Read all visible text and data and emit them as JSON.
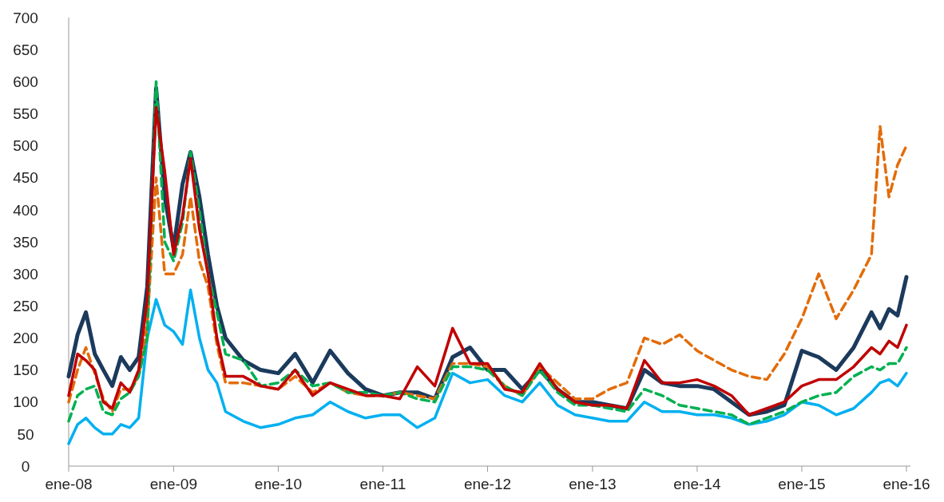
{
  "chart_data": {
    "type": "line",
    "x": [
      "2008-01",
      "2008-02",
      "2008-03",
      "2008-04",
      "2008-05",
      "2008-06",
      "2008-07",
      "2008-08",
      "2008-09",
      "2008-10",
      "2008-11",
      "2008-12",
      "2009-01",
      "2009-02",
      "2009-03",
      "2009-04",
      "2009-05",
      "2009-06",
      "2009-07",
      "2009-09",
      "2009-11",
      "2010-01",
      "2010-03",
      "2010-05",
      "2010-07",
      "2010-09",
      "2010-11",
      "2011-01",
      "2011-03",
      "2011-05",
      "2011-07",
      "2011-09",
      "2011-11",
      "2012-01",
      "2012-03",
      "2012-05",
      "2012-07",
      "2012-09",
      "2012-11",
      "2013-01",
      "2013-03",
      "2013-05",
      "2013-07",
      "2013-09",
      "2013-11",
      "2014-01",
      "2014-03",
      "2014-05",
      "2014-07",
      "2014-09",
      "2014-11",
      "2015-01",
      "2015-03",
      "2015-05",
      "2015-07",
      "2015-09",
      "2015-10",
      "2015-11",
      "2015-12",
      "2016-01"
    ],
    "series": [
      {
        "color": "#00b0f0",
        "line_style": "solid",
        "values": [
          35,
          65,
          75,
          60,
          50,
          50,
          65,
          60,
          75,
          200,
          260,
          220,
          210,
          190,
          275,
          200,
          150,
          130,
          85,
          70,
          60,
          65,
          75,
          80,
          100,
          85,
          75,
          80,
          80,
          60,
          75,
          145,
          130,
          135,
          110,
          100,
          130,
          95,
          80,
          75,
          70,
          70,
          100,
          85,
          85,
          80,
          80,
          75,
          65,
          70,
          80,
          100,
          95,
          80,
          90,
          115,
          130,
          135,
          125,
          145
        ]
      },
      {
        "color": "#1b3a5c",
        "line_style": "solid",
        "values": [
          140,
          205,
          240,
          175,
          150,
          125,
          170,
          150,
          170,
          280,
          590,
          420,
          340,
          440,
          490,
          420,
          330,
          250,
          200,
          165,
          150,
          145,
          175,
          130,
          180,
          145,
          120,
          110,
          115,
          115,
          105,
          170,
          185,
          150,
          150,
          120,
          150,
          120,
          100,
          100,
          95,
          90,
          150,
          130,
          125,
          125,
          120,
          100,
          80,
          85,
          95,
          180,
          170,
          150,
          185,
          240,
          215,
          245,
          235,
          295
        ]
      },
      {
        "color": "#e36c09",
        "line_style": "dashed",
        "values": [
          100,
          150,
          185,
          145,
          105,
          85,
          120,
          120,
          140,
          220,
          450,
          300,
          300,
          330,
          420,
          320,
          280,
          190,
          130,
          130,
          125,
          120,
          140,
          115,
          130,
          115,
          110,
          110,
          115,
          110,
          105,
          160,
          160,
          155,
          125,
          110,
          155,
          130,
          105,
          105,
          120,
          130,
          200,
          190,
          205,
          180,
          165,
          150,
          140,
          135,
          175,
          230,
          300,
          230,
          275,
          330,
          530,
          420,
          470,
          500
        ]
      },
      {
        "color": "#00b050",
        "line_style": "dashed",
        "values": [
          70,
          110,
          120,
          125,
          85,
          80,
          105,
          115,
          140,
          200,
          600,
          350,
          320,
          380,
          490,
          400,
          300,
          240,
          175,
          165,
          125,
          130,
          150,
          125,
          130,
          115,
          115,
          110,
          115,
          105,
          100,
          155,
          155,
          150,
          125,
          110,
          150,
          115,
          95,
          95,
          90,
          85,
          120,
          110,
          95,
          90,
          85,
          80,
          65,
          75,
          85,
          100,
          110,
          115,
          140,
          155,
          150,
          160,
          160,
          185
        ]
      },
      {
        "color": "#c00000",
        "line_style": "solid",
        "values": [
          110,
          175,
          165,
          150,
          100,
          90,
          130,
          115,
          150,
          260,
          560,
          460,
          330,
          390,
          480,
          370,
          300,
          200,
          140,
          140,
          125,
          120,
          150,
          110,
          130,
          120,
          110,
          110,
          105,
          155,
          125,
          215,
          160,
          160,
          120,
          115,
          160,
          120,
          100,
          95,
          95,
          90,
          165,
          130,
          130,
          135,
          125,
          110,
          80,
          90,
          100,
          125,
          135,
          135,
          155,
          185,
          175,
          195,
          185,
          220
        ]
      }
    ],
    "xlim": [
      "2008-01",
      "2016-01-15"
    ],
    "xticks": [
      {
        "value": "2008-01",
        "label": "ene-08"
      },
      {
        "value": "2009-01",
        "label": "ene-09"
      },
      {
        "value": "2010-01",
        "label": "ene-10"
      },
      {
        "value": "2011-01",
        "label": "ene-11"
      },
      {
        "value": "2012-01",
        "label": "ene-12"
      },
      {
        "value": "2013-01",
        "label": "ene-13"
      },
      {
        "value": "2014-01",
        "label": "ene-14"
      },
      {
        "value": "2015-01",
        "label": "ene-15"
      },
      {
        "value": "2016-01",
        "label": "ene-16"
      }
    ],
    "ylim": [
      0,
      700
    ],
    "yticks": [
      0,
      50,
      100,
      150,
      200,
      250,
      300,
      350,
      400,
      450,
      500,
      550,
      600,
      650,
      700
    ]
  }
}
